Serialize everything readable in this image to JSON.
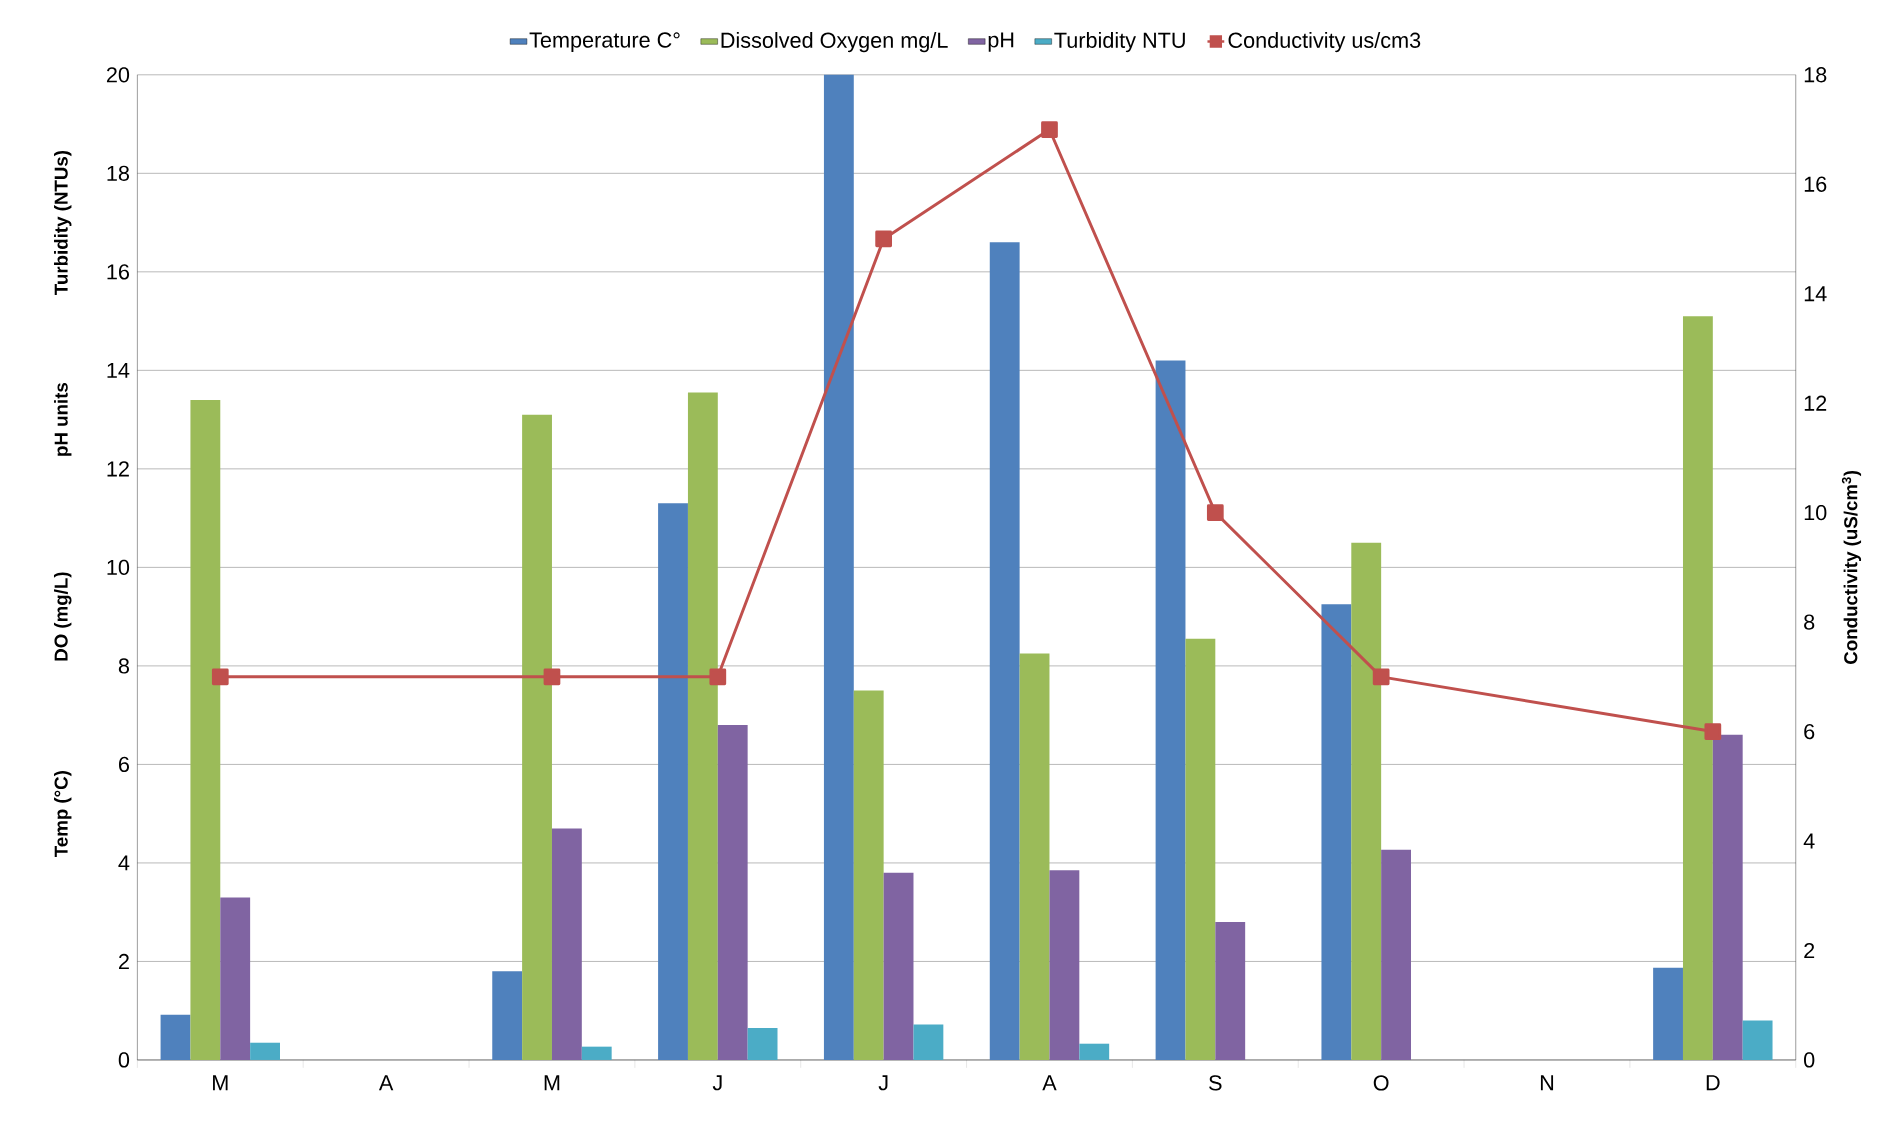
{
  "chart_data": {
    "type": "bar",
    "categories": [
      "M",
      "A",
      "M",
      "J",
      "J",
      "A",
      "S",
      "O",
      "N",
      "D"
    ],
    "series": [
      {
        "name": "Temperature C°",
        "color": "#4f81bd",
        "values": [
          0.92,
          null,
          1.8,
          11.3,
          20,
          16.6,
          14.2,
          9.25,
          null,
          1.87
        ]
      },
      {
        "name": "Dissolved Oxygen mg/L",
        "color": "#9bbb59",
        "values": [
          13.4,
          null,
          13.1,
          13.55,
          7.5,
          8.25,
          8.55,
          10.5,
          null,
          15.1
        ]
      },
      {
        "name": "pH",
        "color": "#8064a2",
        "values": [
          3.3,
          null,
          4.7,
          6.8,
          3.8,
          3.85,
          2.8,
          4.27,
          null,
          6.6
        ]
      },
      {
        "name": "Turbidity NTU",
        "color": "#4bacc6",
        "values": [
          0.35,
          null,
          0.27,
          0.65,
          0.72,
          0.33,
          null,
          null,
          null,
          0.8
        ]
      },
      {
        "name": "Conductivity us/cm3",
        "color": "#c0504d",
        "type": "line",
        "axis": "y2",
        "marker": "square",
        "line_style": "solid",
        "values": [
          7,
          null,
          7,
          7,
          15,
          17,
          10,
          7,
          null,
          6
        ]
      }
    ],
    "ylim": [
      0,
      20
    ],
    "yticks": [
      0,
      2,
      4,
      6,
      8,
      10,
      12,
      14,
      16,
      18,
      20
    ],
    "y2lim": [
      0,
      18
    ],
    "y2ticks": [
      0,
      2,
      4,
      6,
      8,
      10,
      12,
      14,
      16,
      18
    ],
    "y2label": "Conductivity (uS/cm$^{3}$)",
    "annotations": [
      "Temp (°C)",
      "DO (mg/L)",
      "pH units",
      "Turbidity (NTUs)"
    ],
    "grid": "y",
    "legend": "top"
  }
}
